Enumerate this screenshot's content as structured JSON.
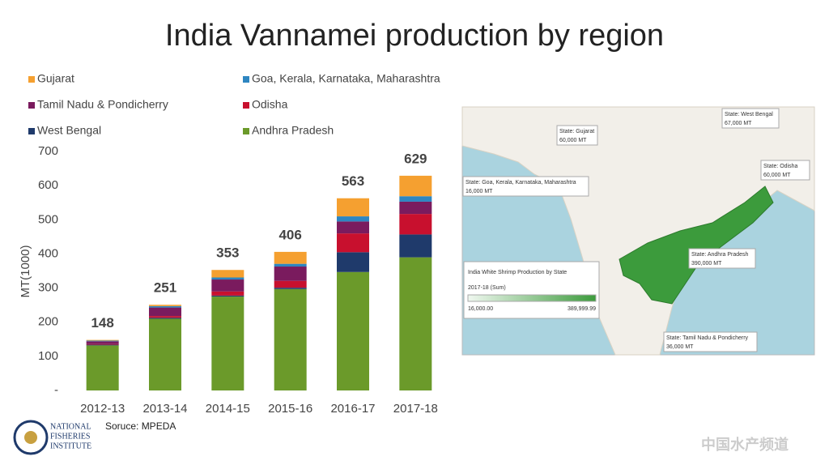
{
  "chart_data": {
    "type": "stacked-bar",
    "title": "India Vannamei production by region",
    "categories": [
      "2012-13",
      "2013-14",
      "2014-15",
      "2015-16",
      "2016-17",
      "2017-18"
    ],
    "series": [
      {
        "name": "Andhra Pradesh",
        "color": "#6b9a2a",
        "values": [
          132,
          210,
          275,
          297,
          347,
          390
        ]
      },
      {
        "name": "West Bengal",
        "color": "#1f3a6b",
        "values": [
          2,
          3,
          3,
          4,
          58,
          67
        ]
      },
      {
        "name": "Odisha",
        "color": "#c8102e",
        "values": [
          2,
          5,
          12,
          20,
          55,
          60
        ]
      },
      {
        "name": "Tamil Nadu & Pondicherry",
        "color": "#7a1b5e",
        "values": [
          8,
          25,
          35,
          42,
          35,
          36
        ]
      },
      {
        "name": "Goa, Kerala, Karnataka, Maharashtra",
        "color": "#2e86c1",
        "values": [
          2,
          4,
          6,
          8,
          15,
          16
        ]
      },
      {
        "name": "Gujarat",
        "color": "#f5a030",
        "values": [
          2,
          4,
          22,
          35,
          53,
          60
        ]
      }
    ],
    "totals": [
      148,
      251,
      353,
      406,
      563,
      629
    ],
    "ylabel": "MT(1000)",
    "ylim": [
      0,
      700
    ],
    "yticks": [
      {
        "value": 0,
        "label": "-"
      },
      100,
      200,
      300,
      400,
      500,
      600,
      700
    ],
    "source": "Soruce: MPEDA"
  },
  "map": {
    "legend_title": "India White Shrimp Production by State",
    "legend_subtitle": "2017-18 (Sum)",
    "legend_min": "16,000.00",
    "legend_max": "389,999.99",
    "callouts": [
      {
        "state": "State: Gujarat",
        "amount": "60,000 MT"
      },
      {
        "state": "State: West Bengal",
        "amount": "67,000 MT"
      },
      {
        "state": "State: Goa, Kerala, Karnataka, Maharashtra",
        "amount": "16,000 MT"
      },
      {
        "state": "State: Odisha",
        "amount": "60,000 MT"
      },
      {
        "state": "State: Andhra Pradesh",
        "amount": "390,000 MT"
      },
      {
        "state": "State: Tamil Nadu & Pondicherry",
        "amount": "36,000 MT"
      }
    ]
  },
  "logo": {
    "line1": "NATIONAL",
    "line2": "FISHERIES",
    "line3": "INSTITUTE"
  },
  "watermark": "中国水产频道"
}
